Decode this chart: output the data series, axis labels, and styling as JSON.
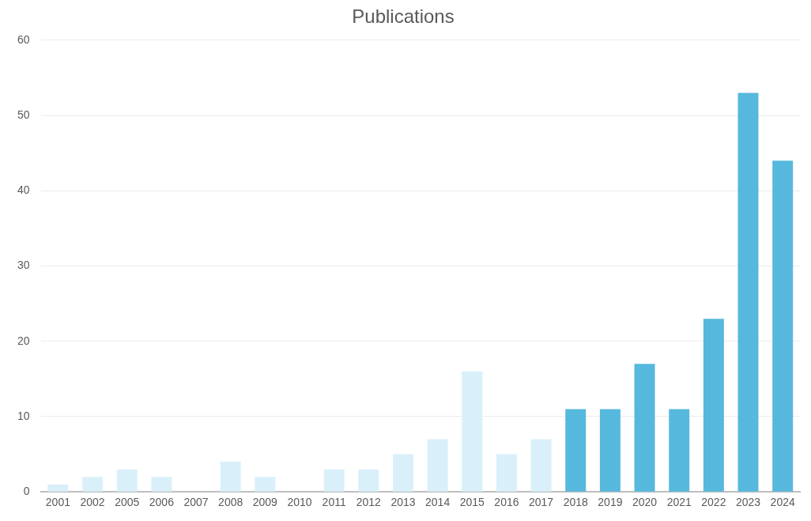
{
  "chart_data": {
    "type": "bar",
    "title": "Publications",
    "categories": [
      "2001",
      "2002",
      "2005",
      "2006",
      "2007",
      "2008",
      "2009",
      "2010",
      "2011",
      "2012",
      "2013",
      "2014",
      "2015",
      "2016",
      "2017",
      "2018",
      "2019",
      "2020",
      "2021",
      "2022",
      "2023",
      "2024"
    ],
    "values": [
      1,
      2,
      3,
      2,
      0,
      4,
      2,
      0,
      3,
      3,
      5,
      7,
      16,
      5,
      7,
      11,
      11,
      17,
      11,
      23,
      53,
      44
    ],
    "colors": [
      "#d9f0fa",
      "#d9f0fa",
      "#d9f0fa",
      "#d9f0fa",
      "#d9f0fa",
      "#d9f0fa",
      "#d9f0fa",
      "#d9f0fa",
      "#d9f0fa",
      "#d9f0fa",
      "#d9f0fa",
      "#d9f0fa",
      "#d9f0fa",
      "#d9f0fa",
      "#d9f0fa",
      "#56b8dd",
      "#56b8dd",
      "#56b8dd",
      "#56b8dd",
      "#56b8dd",
      "#56b8dd",
      "#56b8dd"
    ],
    "ylim": [
      0,
      60
    ],
    "yticks": [
      0,
      10,
      20,
      30,
      40,
      50,
      60
    ],
    "grid": "y",
    "legend": false
  }
}
